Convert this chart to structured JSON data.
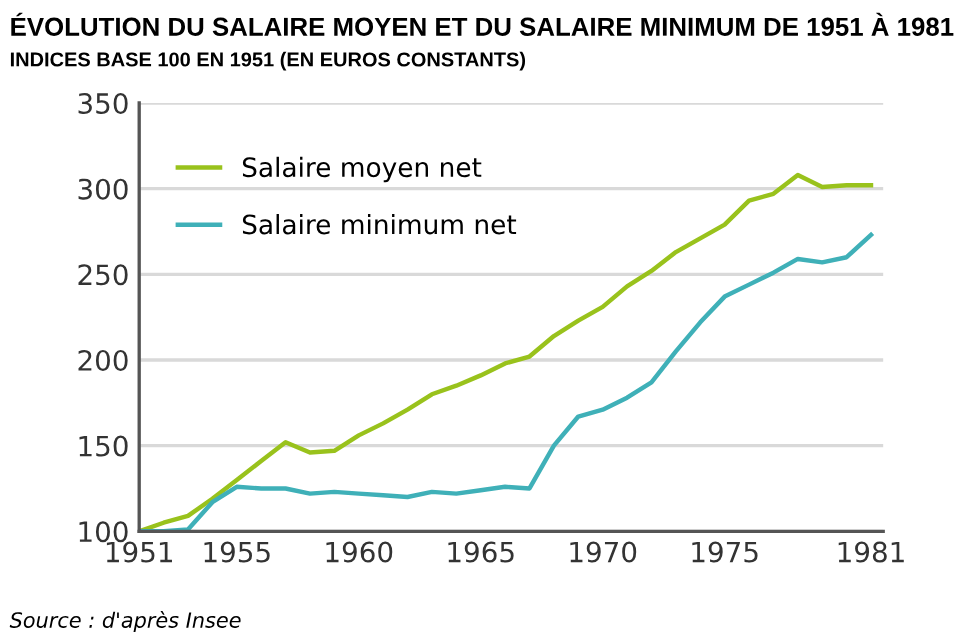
{
  "chart_data": {
    "type": "line",
    "title": "ÉVOLUTION DU SALAIRE MOYEN ET DU SALAIRE MINIMUM DE 1951 À 1981",
    "subtitle": "INDICES BASE 100 EN 1951 (EN EUROS CONSTANTS)",
    "x": [
      1951,
      1952,
      1953,
      1954,
      1955,
      1956,
      1957,
      1958,
      1959,
      1960,
      1961,
      1962,
      1963,
      1964,
      1965,
      1966,
      1967,
      1968,
      1969,
      1970,
      1971,
      1972,
      1973,
      1974,
      1975,
      1976,
      1977,
      1978,
      1979,
      1980,
      1981
    ],
    "series": [
      {
        "name": "Salaire moyen net",
        "color": "#99c21c",
        "values": [
          100,
          105,
          109,
          119,
          130,
          141,
          152,
          146,
          147,
          156,
          163,
          171,
          180,
          185,
          191,
          198,
          202,
          214,
          223,
          231,
          243,
          252,
          263,
          271,
          279,
          293,
          297,
          308,
          301,
          302,
          302
        ]
      },
      {
        "name": "Salaire minimum net",
        "color": "#3fb0b8",
        "values": [
          100,
          100,
          101,
          117,
          126,
          125,
          125,
          122,
          123,
          122,
          121,
          120,
          123,
          122,
          124,
          126,
          125,
          150,
          167,
          171,
          178,
          187,
          205,
          222,
          237,
          244,
          251,
          259,
          257,
          260,
          273
        ]
      }
    ],
    "xlim": [
      1951,
      1981.5
    ],
    "xticks": [
      1951,
      1955,
      1960,
      1965,
      1970,
      1975,
      1981
    ],
    "ylim": [
      100,
      350
    ],
    "yticks": [
      100,
      150,
      200,
      250,
      300,
      350
    ],
    "grid": "y",
    "legend": "top left",
    "marker": "none",
    "line_style": "solid",
    "annotations": [
      "Source : d'après Insee"
    ]
  }
}
